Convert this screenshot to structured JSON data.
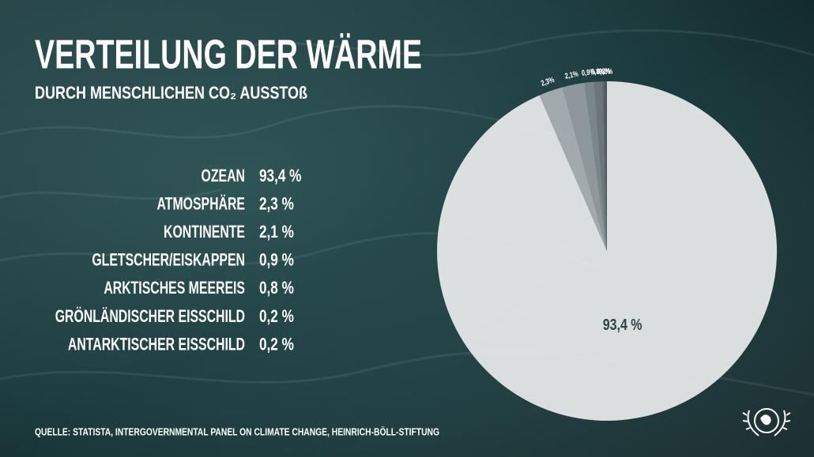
{
  "chart_data": {
    "type": "pie",
    "title": "VERTEILUNG DER WÄRME",
    "subtitle": "DURCH MENSCHLICHEN CO₂ AUSSTOß",
    "source": "QUELLE: STATISTA, INTERGOVERNMENTAL PANEL ON CLIMATE CHANGE, HEINRICH-BÖLL-STIFTUNG",
    "categories": [
      "OZEAN",
      "ATMOSPHÄRE",
      "KONTINENTE",
      "GLETSCHER/EISKAPPEN",
      "ARKTISCHES MEEREIS",
      "GRÖNLÄNDISCHER EISSCHILD",
      "ANTARKTISCHER EISSCHILD"
    ],
    "values": [
      93.4,
      2.3,
      2.1,
      0.9,
      0.8,
      0.2,
      0.2
    ],
    "value_labels": [
      "93,4 %",
      "2,3 %",
      "2,1 %",
      "0,9 %",
      "0,8 %",
      "0,2 %",
      "0,2 %"
    ],
    "slice_labels": [
      "93,4 %",
      "2,3%",
      "2,1%",
      "0,9%",
      "0,8%",
      "0,2%",
      "0,2%"
    ],
    "colors": [
      "#e9ebec",
      "#b7bcbe",
      "#a1a7aa",
      "#8c9396",
      "#788084",
      "#656d71",
      "#545c60"
    ]
  }
}
